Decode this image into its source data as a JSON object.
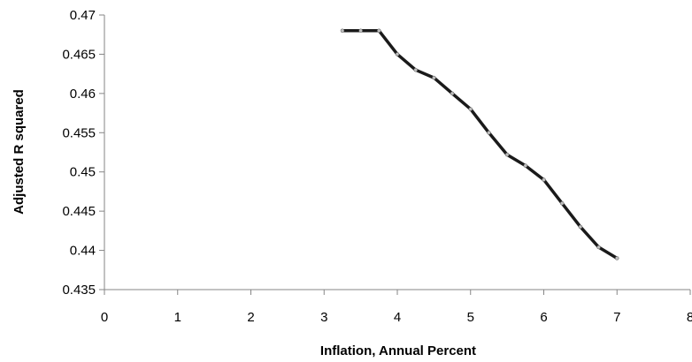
{
  "chart_data": {
    "type": "line",
    "title": "",
    "xlabel": "Inflation, Annual Percent",
    "ylabel": "Adjusted R squared",
    "xlim": [
      0,
      8
    ],
    "ylim": [
      0.435,
      0.47
    ],
    "x_ticks": [
      0,
      1,
      2,
      3,
      4,
      5,
      6,
      7,
      8
    ],
    "y_ticks": [
      0.435,
      0.44,
      0.445,
      0.45,
      0.455,
      0.46,
      0.465,
      0.47
    ],
    "x_tick_labels": [
      "0",
      "1",
      "2",
      "3",
      "4",
      "5",
      "6",
      "7",
      "8"
    ],
    "y_tick_labels": [
      "0.435",
      "0.44",
      "0.445",
      "0.45",
      "0.455",
      "0.46",
      "0.465",
      "0.47"
    ],
    "grid": false,
    "legend": "none",
    "line_color": "#1a1a1a",
    "marker_color": "#bfbfbf",
    "series": [
      {
        "x": [
          3.25,
          3.5,
          3.75,
          4.0,
          4.25,
          4.5,
          4.75,
          5.0,
          5.25,
          5.5,
          5.75,
          6.0,
          6.25,
          6.5,
          6.75,
          7.0
        ],
        "values": [
          0.468,
          0.468,
          0.468,
          0.465,
          0.463,
          0.462,
          0.46,
          0.458,
          0.455,
          0.4522,
          0.4508,
          0.449,
          0.446,
          0.443,
          0.4404,
          0.439
        ]
      }
    ]
  }
}
